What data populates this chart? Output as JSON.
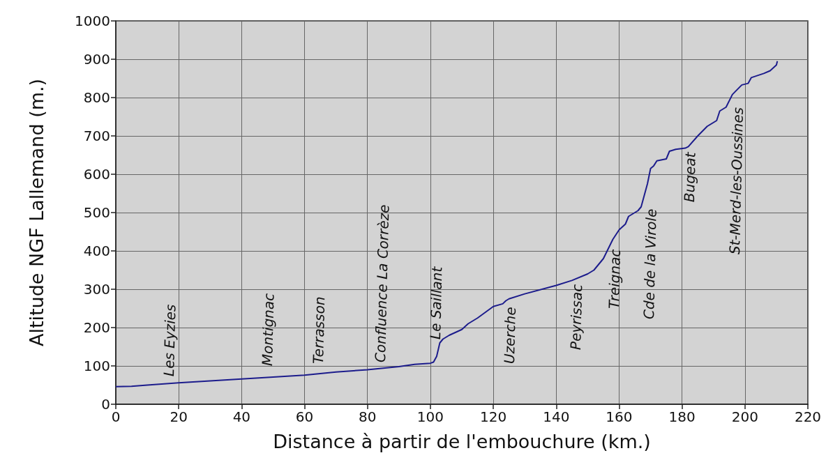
{
  "chart_data": {
    "type": "line",
    "xlabel": "Distance à partir de l'embouchure (km.)",
    "ylabel": "Altitude NGF Lallemand (m.)",
    "xlim": [
      0,
      220
    ],
    "xticks": [
      0,
      20,
      40,
      60,
      80,
      100,
      120,
      140,
      160,
      180,
      200,
      220
    ],
    "ylim": [
      0,
      1000
    ],
    "yticks": [
      0,
      100,
      200,
      300,
      400,
      500,
      600,
      700,
      800,
      900,
      1000
    ],
    "grid": true,
    "marker": "none",
    "line_style": "solid",
    "series": [
      {
        "color": "#1c1c8c",
        "x": [
          0,
          5,
          10,
          20,
          30,
          40,
          50,
          60,
          70,
          80,
          90,
          95,
          100,
          101,
          102,
          103,
          104,
          106,
          110,
          112,
          115,
          120,
          123,
          124,
          125,
          130,
          140,
          145,
          150,
          152,
          155,
          158,
          160,
          162,
          163,
          166,
          167,
          168,
          169,
          170,
          171,
          172,
          175,
          176,
          178,
          181,
          182,
          185,
          188,
          191,
          192,
          194,
          196,
          199,
          201,
          202,
          206,
          208,
          210,
          210.3
        ],
        "values": [
          46,
          47,
          50,
          56,
          61,
          66,
          71,
          76,
          84,
          90,
          98,
          104,
          107,
          110,
          125,
          160,
          170,
          180,
          195,
          210,
          225,
          255,
          262,
          270,
          275,
          288,
          310,
          323,
          340,
          350,
          380,
          430,
          455,
          470,
          490,
          505,
          515,
          545,
          575,
          615,
          622,
          635,
          640,
          660,
          665,
          668,
          672,
          700,
          725,
          740,
          765,
          775,
          808,
          833,
          837,
          852,
          863,
          870,
          885,
          895
        ]
      }
    ],
    "annotations": [
      "Les Eyzies",
      "Montignac",
      "Terrasson",
      "Confluence La Corrèze",
      "Le Saillant",
      "Uzerche",
      "Peyrissac",
      "Treignac",
      "Cde de la Virole",
      "Bugeat",
      "St-Merd-les-Oussines"
    ]
  }
}
